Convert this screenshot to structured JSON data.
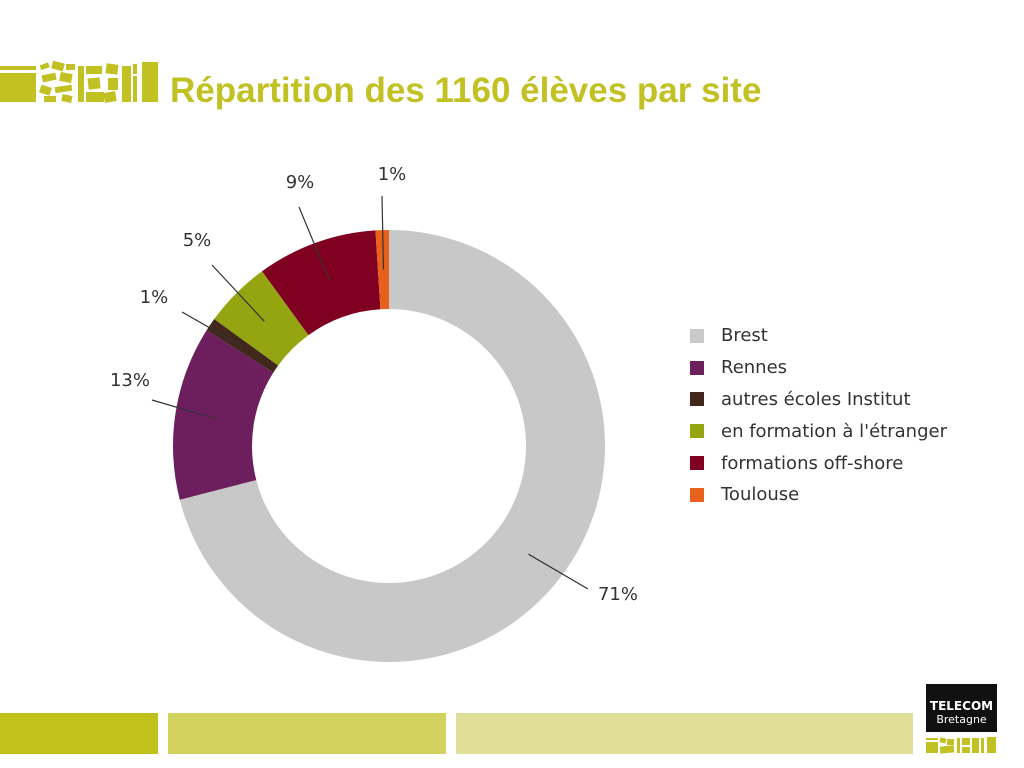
{
  "header": {
    "title": "Répartition des 1160 élèves par site"
  },
  "colors": {
    "accent": "#c2c124",
    "footer_bar_1": "#c0c11a",
    "footer_bar_2": "#d2d35e",
    "footer_bar_3": "#dfdf9a",
    "brand_box": "#111111"
  },
  "logo_top": {
    "icon": "institut-telecom-logo-icon"
  },
  "branding": {
    "line1": "TELECOM",
    "line2": "Bretagne",
    "logo_icon": "institut-telecom-small-logo-icon"
  },
  "chart_data": {
    "type": "pie",
    "style": "donut",
    "title": "Répartition des 1160 élèves par site",
    "legend_position": "right",
    "start": "top, clockwise",
    "series": [
      {
        "name": "Brest",
        "value": 71,
        "label": "71%",
        "color": "#c8c8c8"
      },
      {
        "name": "Rennes",
        "value": 13,
        "label": "13%",
        "color": "#6c1f5c"
      },
      {
        "name": "autres écoles Institut",
        "value": 1,
        "label": "1%",
        "color": "#42271d"
      },
      {
        "name": "en formation à l'étranger",
        "value": 5,
        "label": "5%",
        "color": "#95a511"
      },
      {
        "name": "formations off-shore",
        "value": 9,
        "label": "9%",
        "color": "#7f0021"
      },
      {
        "name": "Toulouse",
        "value": 1,
        "label": "1%",
        "color": "#e8611c"
      }
    ]
  }
}
